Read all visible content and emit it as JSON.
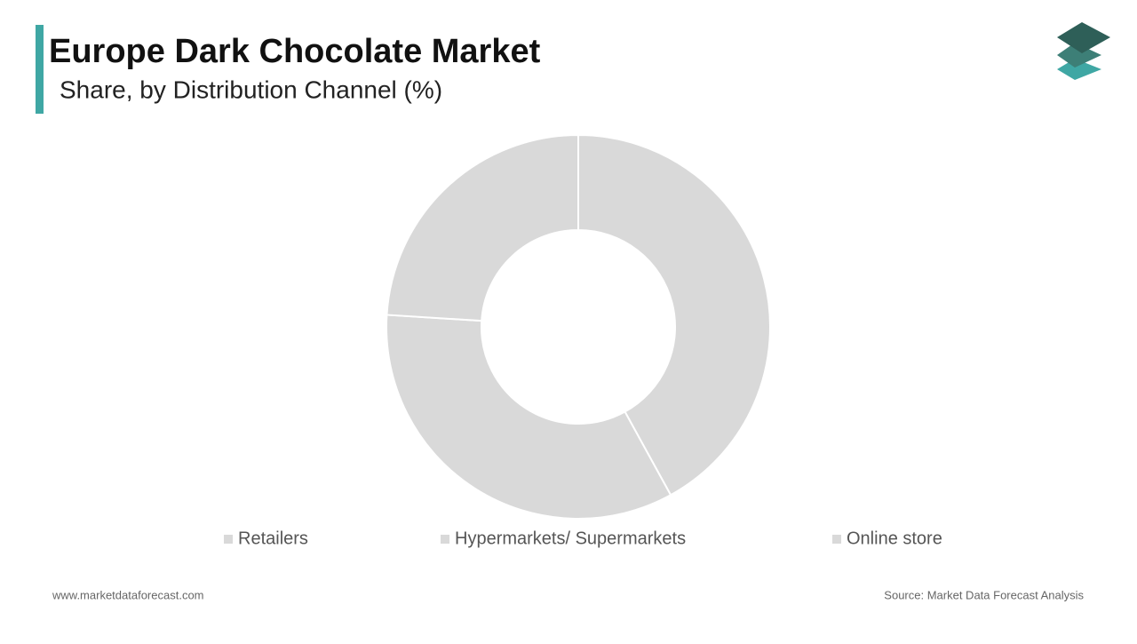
{
  "chart_data": {
    "type": "donut",
    "title": "Europe Dark Chocolate Market",
    "subtitle": "Share, by Distribution Channel (%)",
    "categories": [
      "Retailers",
      "Hypermarkets/ Supermarkets",
      "Online store"
    ],
    "values": [
      42,
      34,
      24
    ],
    "colors": [
      "#d9d9d9",
      "#d9d9d9",
      "#d9d9d9"
    ],
    "footer_left": "www.marketdataforecast.com",
    "footer_right": "Source: Market Data Forecast Analysis"
  }
}
